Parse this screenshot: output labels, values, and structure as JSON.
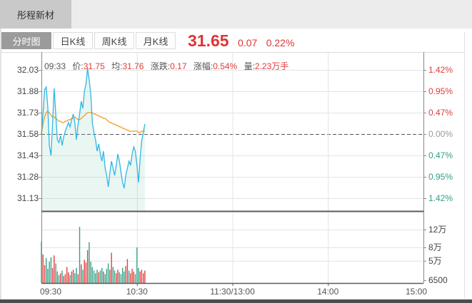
{
  "window": {
    "stock_name": "彤程新材"
  },
  "toolbar": {
    "tabs": [
      {
        "label": "分时图",
        "active": true
      },
      {
        "label": "日K线",
        "active": false
      },
      {
        "label": "周K线",
        "active": false
      },
      {
        "label": "月K线",
        "active": false
      }
    ],
    "last_price": "31.65",
    "change": "0.07",
    "change_pct": "0.22%"
  },
  "info_bar": {
    "time": "09:33",
    "price_label": "价:",
    "price": "31.75",
    "avg_label": "均:",
    "avg": "31.76",
    "change_label": "涨跌:",
    "change": "0.17",
    "pct_label": "涨幅:",
    "pct": "0.54%",
    "volume_label": "量:",
    "volume": "2.23万手"
  },
  "chart_data": {
    "type": "line",
    "title": "彤程新材 分时图",
    "prev_close": 31.58,
    "last_price": 31.65,
    "x_axis": {
      "ticks": [
        "09:30",
        "10:30",
        "11:30/13:00",
        "14:00",
        "15:00"
      ],
      "total_minutes": 240
    },
    "y_axis_left": [
      "32.03",
      "31.88",
      "31.73",
      "31.58",
      "31.43",
      "31.28",
      "31.13"
    ],
    "y_axis_right": [
      {
        "label": "1.42%",
        "tone": "up"
      },
      {
        "label": "0.95%",
        "tone": "up"
      },
      {
        "label": "0.47%",
        "tone": "up"
      },
      {
        "label": "0.00%",
        "tone": "flat"
      },
      {
        "label": "0.47%",
        "tone": "down"
      },
      {
        "label": "0.95%",
        "tone": "down"
      },
      {
        "label": "1.42%",
        "tone": "down"
      }
    ],
    "volume_axis": [
      {
        "label": "12万",
        "value": 12,
        "grid": true
      },
      {
        "label": "8万",
        "value": 8,
        "grid": true
      },
      {
        "label": "5万",
        "value": 5,
        "grid": true
      },
      {
        "label": "6500",
        "value": 0.65,
        "grid": false
      }
    ],
    "price_series": [
      31.58,
      31.72,
      31.89,
      31.91,
      31.77,
      31.5,
      31.43,
      31.65,
      31.9,
      31.72,
      31.54,
      31.52,
      31.57,
      31.5,
      31.56,
      31.6,
      31.63,
      31.66,
      31.63,
      31.68,
      31.72,
      31.66,
      31.54,
      31.65,
      31.72,
      31.81,
      31.76,
      31.88,
      31.93,
      32.04,
      31.96,
      31.86,
      31.66,
      31.59,
      31.54,
      31.46,
      31.51,
      31.44,
      31.39,
      31.46,
      31.34,
      31.29,
      31.21,
      31.31,
      31.39,
      31.34,
      31.29,
      31.36,
      31.44,
      31.39,
      31.31,
      31.24,
      31.2,
      31.29,
      31.34,
      31.39,
      31.36,
      31.44,
      31.49,
      31.46,
      31.36,
      31.24,
      31.41,
      31.53,
      31.59,
      31.65
    ],
    "avg_series": [
      31.58,
      31.65,
      31.7,
      31.73,
      31.74,
      31.73,
      31.71,
      31.7,
      31.7,
      31.69,
      31.68,
      31.67,
      31.67,
      31.66,
      31.66,
      31.67,
      31.67,
      31.68,
      31.68,
      31.69,
      31.69,
      31.7,
      31.69,
      31.68,
      31.68,
      31.69,
      31.7,
      31.71,
      31.72,
      31.73,
      31.73,
      31.73,
      31.73,
      31.72,
      31.72,
      31.71,
      31.71,
      31.7,
      31.7,
      31.69,
      31.69,
      31.68,
      31.67,
      31.66,
      31.66,
      31.65,
      31.65,
      31.64,
      31.64,
      31.63,
      31.63,
      31.62,
      31.62,
      31.61,
      31.61,
      31.6,
      31.6,
      31.6,
      31.6,
      31.6,
      31.6,
      31.59,
      31.59,
      31.6,
      31.6,
      31.6
    ],
    "volume_series": [
      [
        9.3,
        "down"
      ],
      [
        6.4,
        "up"
      ],
      [
        4.0,
        "up"
      ],
      [
        5.6,
        "down"
      ],
      [
        3.2,
        "down"
      ],
      [
        4.8,
        "down"
      ],
      [
        5.8,
        "down"
      ],
      [
        3.4,
        "up"
      ],
      [
        6.2,
        "up"
      ],
      [
        4.4,
        "down"
      ],
      [
        2.6,
        "down"
      ],
      [
        1.8,
        "down"
      ],
      [
        2.2,
        "up"
      ],
      [
        2.8,
        "down"
      ],
      [
        1.6,
        "up"
      ],
      [
        2.0,
        "up"
      ],
      [
        3.6,
        "up"
      ],
      [
        2.4,
        "up"
      ],
      [
        1.8,
        "down"
      ],
      [
        2.6,
        "up"
      ],
      [
        3.0,
        "up"
      ],
      [
        2.2,
        "down"
      ],
      [
        3.4,
        "down"
      ],
      [
        2.0,
        "up"
      ],
      [
        12.6,
        "down"
      ],
      [
        4.2,
        "up"
      ],
      [
        3.0,
        "down"
      ],
      [
        5.2,
        "up"
      ],
      [
        4.6,
        "up"
      ],
      [
        7.4,
        "up"
      ],
      [
        9.2,
        "down"
      ],
      [
        4.8,
        "down"
      ],
      [
        3.6,
        "down"
      ],
      [
        2.8,
        "down"
      ],
      [
        2.2,
        "down"
      ],
      [
        3.0,
        "down"
      ],
      [
        2.4,
        "up"
      ],
      [
        2.8,
        "down"
      ],
      [
        3.4,
        "down"
      ],
      [
        2.6,
        "up"
      ],
      [
        2.0,
        "down"
      ],
      [
        3.2,
        "down"
      ],
      [
        4.4,
        "down"
      ],
      [
        3.0,
        "up"
      ],
      [
        6.8,
        "up"
      ],
      [
        3.6,
        "down"
      ],
      [
        2.8,
        "down"
      ],
      [
        2.2,
        "up"
      ],
      [
        3.0,
        "up"
      ],
      [
        2.4,
        "down"
      ],
      [
        2.0,
        "down"
      ],
      [
        3.4,
        "down"
      ],
      [
        2.6,
        "down"
      ],
      [
        3.8,
        "up"
      ],
      [
        5.4,
        "up"
      ],
      [
        2.8,
        "down"
      ],
      [
        2.2,
        "up"
      ],
      [
        3.2,
        "up"
      ],
      [
        2.6,
        "up"
      ],
      [
        2.0,
        "down"
      ],
      [
        8.0,
        "down"
      ],
      [
        3.4,
        "down"
      ],
      [
        2.6,
        "up"
      ],
      [
        3.0,
        "up"
      ],
      [
        2.2,
        "up"
      ],
      [
        2.8,
        "up"
      ]
    ],
    "colors": {
      "price_line": "#31b6e4",
      "avg_line": "#f59a23",
      "fill": "rgba(120,200,175,0.16)",
      "up": "#e14141",
      "down": "#35a287",
      "flat": "#999999",
      "grid": "#e4e4e4",
      "frame": "#888888",
      "frame_dark": "#5a5a5a",
      "dashed": "#555555",
      "text": "#555555"
    }
  }
}
